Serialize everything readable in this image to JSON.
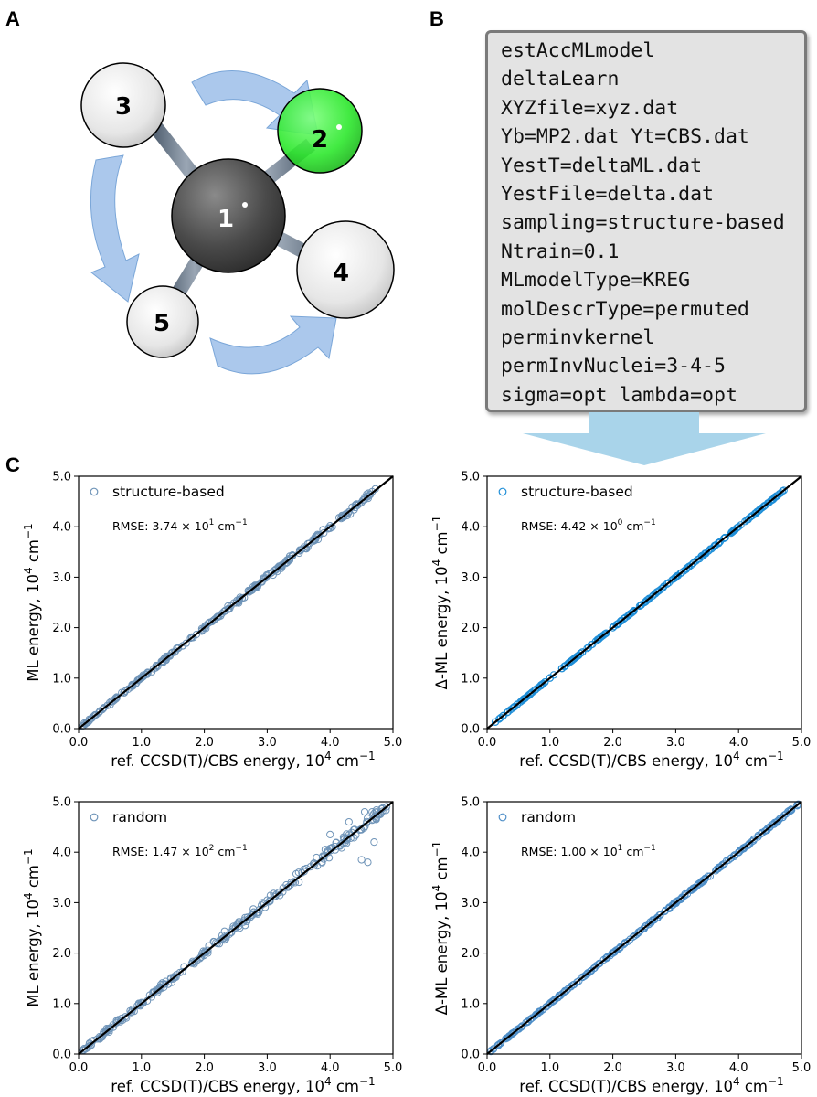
{
  "panels": {
    "a": "A",
    "b": "B",
    "c": "C"
  },
  "molecule": {
    "atoms": [
      {
        "label": "1",
        "role": "carbon-atom",
        "color": "#4a4a4a"
      },
      {
        "label": "2",
        "role": "chlorine-atom",
        "color": "#2ee82e"
      },
      {
        "label": "3",
        "role": "hydrogen-atom",
        "color": "#ececec"
      },
      {
        "label": "4",
        "role": "hydrogen-atom",
        "color": "#ececec"
      },
      {
        "label": "5",
        "role": "hydrogen-atom",
        "color": "#ececec"
      }
    ],
    "rotation_arrow_color": "#8fb6e6"
  },
  "input_file": {
    "lines": [
      "estAccMLmodel",
      "deltaLearn",
      "XYZfile=xyz.dat",
      "Yb=MP2.dat Yt=CBS.dat",
      "YestT=deltaML.dat",
      "YestFile=delta.dat",
      "sampling=structure-based",
      "Ntrain=0.1",
      "MLmodelType=KREG",
      "molDescrType=permuted",
      "perminvkernel",
      "permInvNuclei=3-4-5",
      "sigma=opt lambda=opt"
    ],
    "arrow_color": "#a9d4ea"
  },
  "chart_data": [
    {
      "type": "scatter",
      "legend": "structure-based",
      "legend_position": "top-left",
      "rmse_text": {
        "prefix": "RMSE: 3.74 × 10",
        "exp": "1",
        "suffix": " cm",
        "unit_exp": "−1"
      },
      "xlabel": {
        "main": "ref. CCSD(T)/CBS energy, 10",
        "sup": "4",
        "unit": " cm",
        "unit_sup": "−1"
      },
      "ylabel": {
        "main": "ML energy, 10",
        "sup": "4",
        "unit": " cm",
        "unit_sup": "−1"
      },
      "xlim": [
        0,
        5.0
      ],
      "ylim": [
        0,
        5.0
      ],
      "ticks": [
        "0.0",
        "1.0",
        "2.0",
        "3.0",
        "4.0",
        "5.0"
      ],
      "tick_values": [
        0,
        1,
        2,
        3,
        4,
        5
      ],
      "reference_line": {
        "x": [
          0,
          5
        ],
        "y": [
          0,
          5
        ]
      },
      "marker_color": "#6f94b8",
      "x_max": 4.72,
      "scatter_spread": 0.045,
      "series": [
        {
          "name": "structure-based",
          "x": [
            0.2,
            0.6,
            1.0,
            1.4,
            1.8,
            2.2,
            2.6,
            3.0,
            3.2,
            3.4,
            3.6,
            3.8,
            4.0,
            4.2,
            4.4,
            4.6,
            4.72
          ],
          "y": [
            0.2,
            0.61,
            1.0,
            1.4,
            1.8,
            2.21,
            2.58,
            3.03,
            3.2,
            3.42,
            3.57,
            3.82,
            4.02,
            4.18,
            4.43,
            4.6,
            4.75
          ]
        }
      ]
    },
    {
      "type": "scatter",
      "legend": "structure-based",
      "legend_position": "top-left",
      "rmse_text": {
        "prefix": "RMSE: 4.42 × 10",
        "exp": "0",
        "suffix": " cm",
        "unit_exp": "−1"
      },
      "xlabel": {
        "main": "ref. CCSD(T)/CBS energy, 10",
        "sup": "4",
        "unit": " cm",
        "unit_sup": "−1"
      },
      "ylabel": {
        "main": "Δ-ML energy, 10",
        "sup": "4",
        "unit": " cm",
        "unit_sup": "−1"
      },
      "xlim": [
        0,
        5.0
      ],
      "ylim": [
        0,
        5.0
      ],
      "ticks": [
        "0.0",
        "1.0",
        "2.0",
        "3.0",
        "4.0",
        "5.0"
      ],
      "tick_values": [
        0,
        1,
        2,
        3,
        4,
        5
      ],
      "reference_line": {
        "x": [
          0,
          5
        ],
        "y": [
          0,
          5
        ]
      },
      "marker_color": "#1f8fd8",
      "x_max": 4.72,
      "scatter_spread": 0.008,
      "series": [
        {
          "name": "structure-based",
          "x": [
            0.2,
            1.0,
            2.0,
            3.0,
            4.0,
            4.5,
            4.72
          ],
          "y": [
            0.2,
            1.0,
            2.0,
            3.0,
            4.0,
            4.5,
            4.72
          ]
        }
      ]
    },
    {
      "type": "scatter",
      "legend": "random",
      "legend_position": "top-left",
      "rmse_text": {
        "prefix": "RMSE: 1.47 × 10",
        "exp": "2",
        "suffix": " cm",
        "unit_exp": "−1"
      },
      "xlabel": {
        "main": "ref. CCSD(T)/CBS energy, 10",
        "sup": "4",
        "unit": " cm",
        "unit_sup": "−1"
      },
      "ylabel": {
        "main": "ML energy, 10",
        "sup": "4",
        "unit": " cm",
        "unit_sup": "−1"
      },
      "xlim": [
        0,
        5.0
      ],
      "ylim": [
        0,
        5.0
      ],
      "ticks": [
        "0.0",
        "1.0",
        "2.0",
        "3.0",
        "4.0",
        "5.0"
      ],
      "tick_values": [
        0,
        1,
        2,
        3,
        4,
        5
      ],
      "reference_line": {
        "x": [
          0,
          5
        ],
        "y": [
          0,
          5
        ]
      },
      "marker_color": "#6f94b8",
      "x_max": 4.95,
      "scatter_spread": 0.09,
      "series": [
        {
          "name": "random",
          "x": [
            0.3,
            1.0,
            1.8,
            2.5,
            3.0,
            3.5,
            4.0,
            4.3,
            4.5,
            4.55,
            4.6,
            4.7,
            4.8,
            4.9
          ],
          "y": [
            0.3,
            1.02,
            1.8,
            2.53,
            3.05,
            3.6,
            4.35,
            4.6,
            3.85,
            4.8,
            3.8,
            4.2,
            4.75,
            4.9
          ]
        }
      ]
    },
    {
      "type": "scatter",
      "legend": "random",
      "legend_position": "top-left",
      "rmse_text": {
        "prefix": "RMSE: 1.00 × 10",
        "exp": "1",
        "suffix": " cm",
        "unit_exp": "−1"
      },
      "xlabel": {
        "main": "ref. CCSD(T)/CBS energy, 10",
        "sup": "4",
        "unit": " cm",
        "unit_sup": "−1"
      },
      "ylabel": {
        "main": "Δ-ML energy, 10",
        "sup": "4",
        "unit": " cm",
        "unit_sup": "−1"
      },
      "xlim": [
        0,
        5.0
      ],
      "ylim": [
        0,
        5.0
      ],
      "ticks": [
        "0.0",
        "1.0",
        "2.0",
        "3.0",
        "4.0",
        "5.0"
      ],
      "tick_values": [
        0,
        1,
        2,
        3,
        4,
        5
      ],
      "reference_line": {
        "x": [
          0,
          5
        ],
        "y": [
          0,
          5
        ]
      },
      "marker_color": "#4f8fc8",
      "x_max": 4.95,
      "scatter_spread": 0.018,
      "series": [
        {
          "name": "random",
          "x": [
            0.2,
            1.0,
            2.0,
            3.0,
            4.0,
            4.5,
            4.95
          ],
          "y": [
            0.2,
            1.0,
            2.0,
            3.0,
            4.0,
            4.5,
            4.95
          ]
        }
      ]
    }
  ]
}
